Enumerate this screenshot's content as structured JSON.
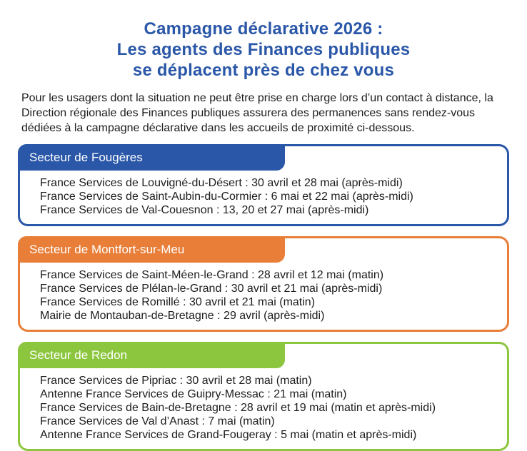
{
  "title": {
    "lines": [
      "Campagne déclarative 2026 :",
      "Les agents des Finances publiques",
      "se déplacent près de chez vous"
    ],
    "color": "#2a57a8"
  },
  "intro": "Pour les usagers dont la situation ne peut être prise en charge lors d’un contact à distance, la Direction régionale des Finances publiques assurera des permanences sans rendez-vous dédiées à la campagne déclarative dans les accueils de proximité ci-dessous.",
  "sectors": [
    {
      "label": "Secteur de Fougères",
      "color": "#2a57a8",
      "items": [
        "France Services de Louvigné-du-Désert : 30 avril et 28 mai (après-midi)",
        "France Services de Saint-Aubin-du-Cormier : 6 mai et 22 mai (après-midi)",
        "France Services de Val-Couesnon : 13, 20 et 27 mai (après-midi)"
      ]
    },
    {
      "label": "Secteur de Montfort-sur-Meu",
      "color": "#e87e38",
      "items": [
        "France Services de Saint-Méen-le-Grand : 28 avril et 12 mai (matin)",
        "France Services de Plélan-le-Grand : 30 avril et 21 mai (après-midi)",
        "France Services de Romillé : 30 avril et 21 mai (matin)",
        "Mairie de Montauban-de-Bretagne : 29 avril (après-midi)"
      ]
    },
    {
      "label": "Secteur de Redon",
      "color": "#8cc63f",
      "items": [
        "France Services de Pipriac : 30 avril et 28 mai (matin)",
        "Antenne France Services de Guipry-Messac : 21 mai (matin)",
        "France Services de Bain-de-Bretagne : 28 avril et 19 mai (matin et après-midi)",
        "France Services de Val d’Anast : 7 mai (matin)",
        "Antenne France Services de Grand-Fougeray : 5 mai (matin et après-midi)"
      ]
    }
  ]
}
